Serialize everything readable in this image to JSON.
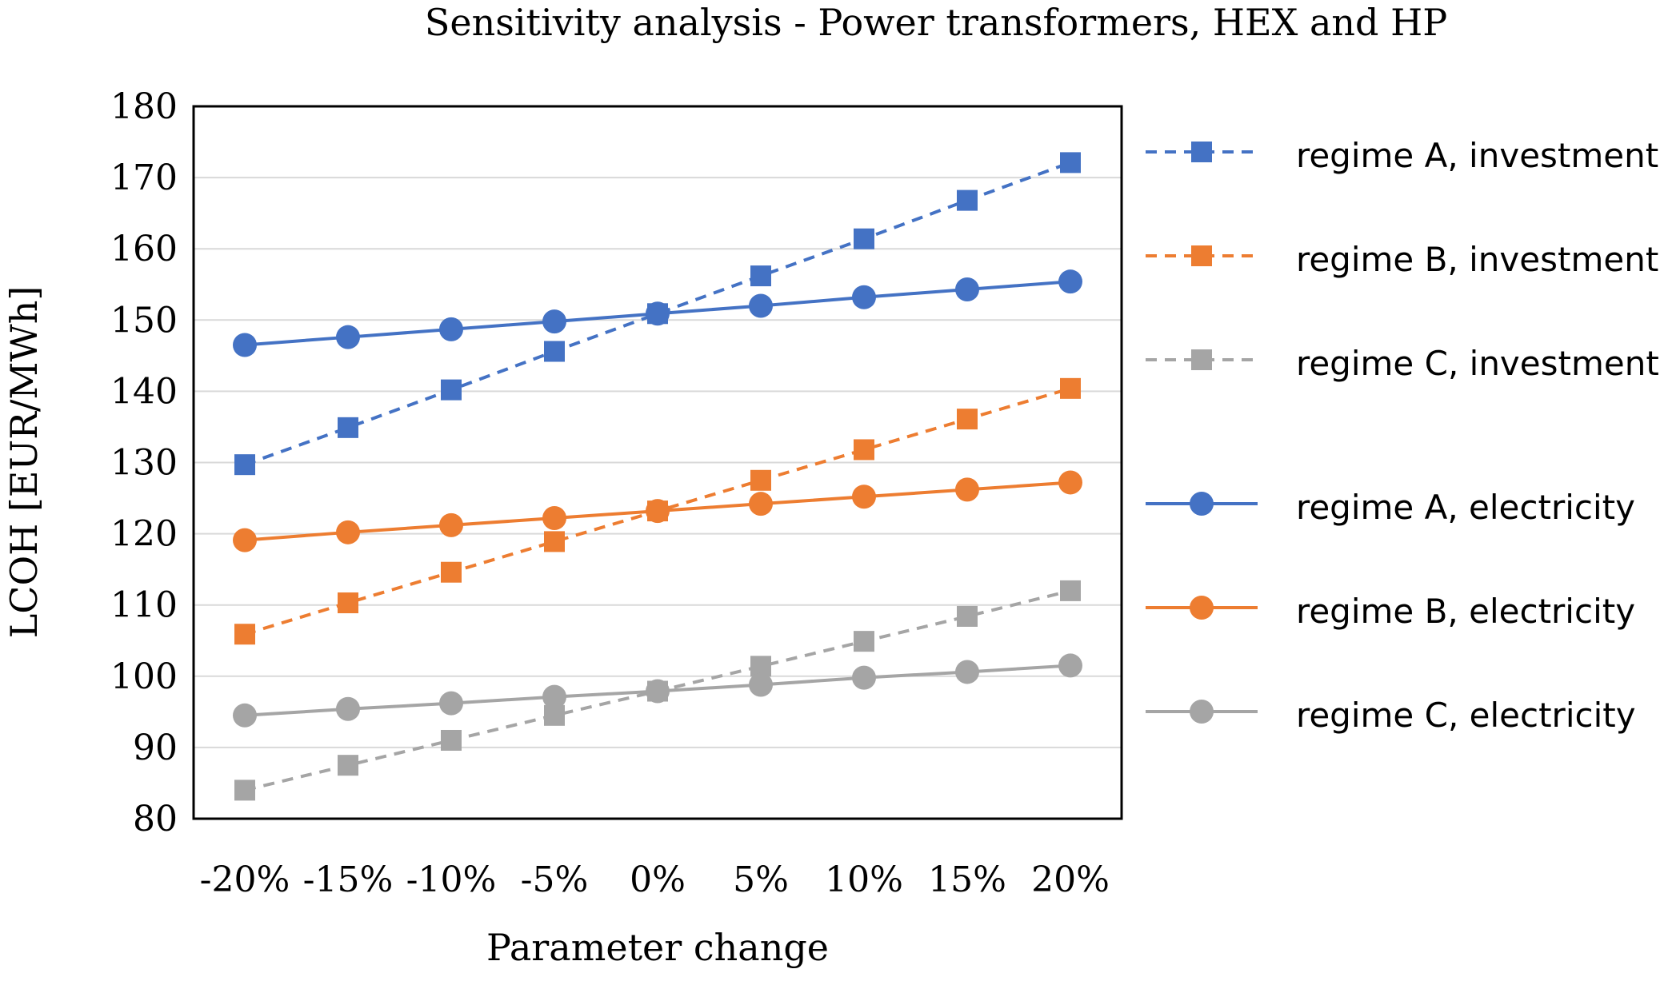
{
  "chart_data": {
    "type": "line",
    "title": "Sensitivity analysis - Power transformers, HEX and HP",
    "xlabel": "Parameter change",
    "ylabel": "LCOH [EUR/MWh]",
    "categories": [
      "-20%",
      "-15%",
      "-10%",
      "-5%",
      "0%",
      "5%",
      "10%",
      "15%",
      "20%"
    ],
    "ylim": [
      80,
      180
    ],
    "yticks": [
      80,
      90,
      100,
      110,
      120,
      130,
      140,
      150,
      160,
      170,
      180
    ],
    "grid": true,
    "legend_position": "right",
    "series": [
      {
        "name": "regime A, investment",
        "color": "#4472C4",
        "marker": "square",
        "dash": true,
        "values": [
          129.7,
          134.9,
          140.2,
          145.6,
          150.9,
          156.2,
          161.4,
          166.8,
          172.1
        ]
      },
      {
        "name": "regime B, investment",
        "color": "#ED7D31",
        "marker": "square",
        "dash": true,
        "values": [
          105.9,
          110.3,
          114.6,
          118.9,
          123.2,
          127.5,
          131.8,
          136.1,
          140.4
        ]
      },
      {
        "name": "regime C, investment",
        "color": "#A5A5A5",
        "marker": "square",
        "dash": true,
        "values": [
          84.0,
          87.5,
          91.0,
          94.5,
          97.9,
          101.4,
          104.9,
          108.4,
          112.0
        ]
      },
      {
        "name": "regime A, electricity",
        "color": "#4472C4",
        "marker": "circle",
        "dash": false,
        "values": [
          146.5,
          147.6,
          148.7,
          149.8,
          150.9,
          152.0,
          153.2,
          154.3,
          155.4
        ]
      },
      {
        "name": "regime B, electricity",
        "color": "#ED7D31",
        "marker": "circle",
        "dash": false,
        "values": [
          119.1,
          120.2,
          121.2,
          122.2,
          123.2,
          124.2,
          125.2,
          126.2,
          127.2
        ]
      },
      {
        "name": "regime C, electricity",
        "color": "#A5A5A5",
        "marker": "circle",
        "dash": false,
        "values": [
          94.5,
          95.4,
          96.2,
          97.1,
          97.9,
          98.8,
          99.8,
          100.6,
          101.5
        ]
      }
    ]
  }
}
